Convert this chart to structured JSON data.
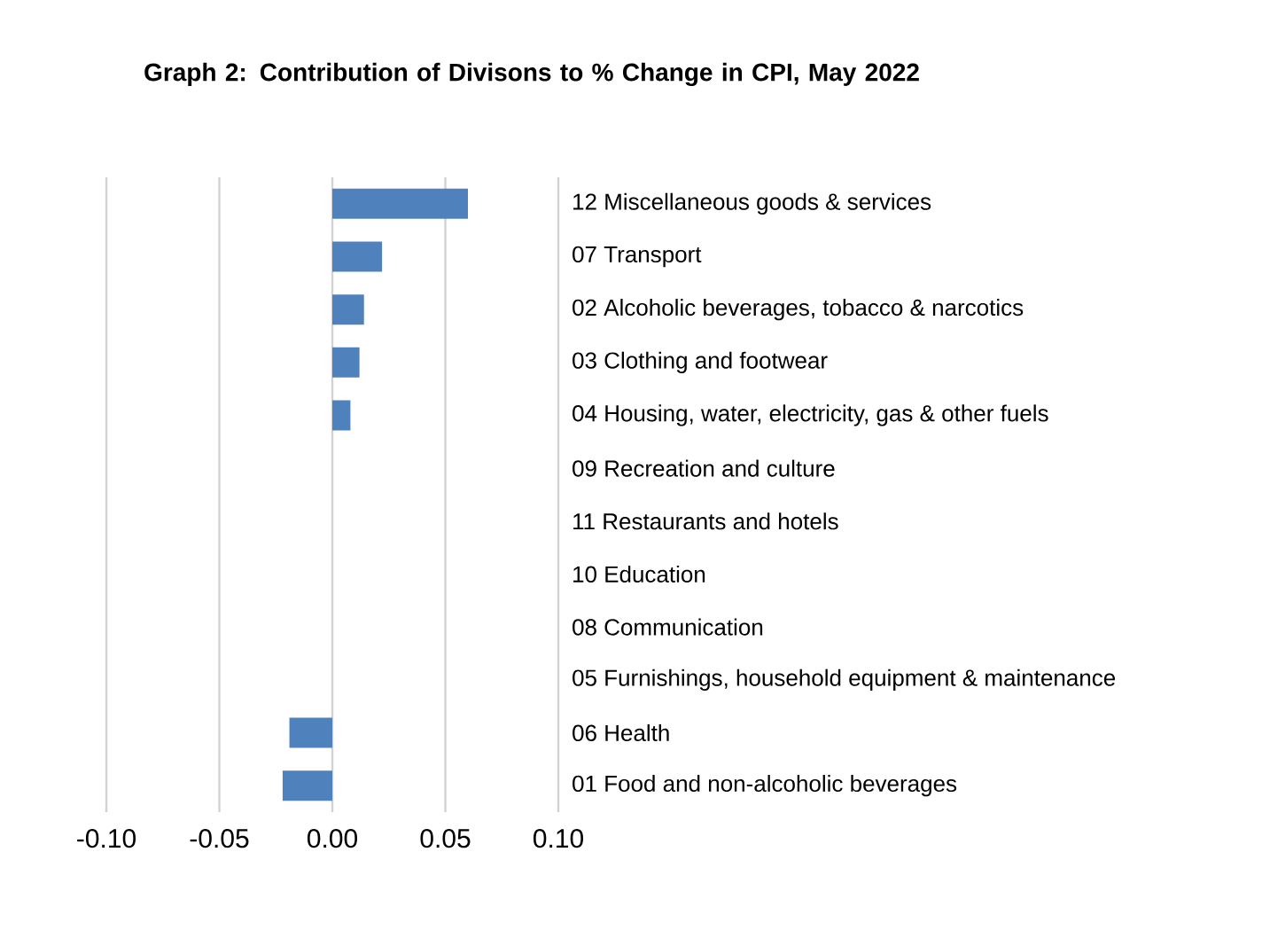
{
  "chart_data": {
    "type": "bar",
    "orientation": "horizontal",
    "title": "Graph 2: Contribution of Divisons to % Change in CPI, May 2022",
    "categories": [
      "12 Miscellaneous goods & services",
      "07 Transport",
      "02 Alcoholic beverages, tobacco & narcotics",
      "03 Clothing and footwear",
      "04 Housing, water, electricity, gas & other fuels",
      "09 Recreation and culture",
      "11 Restaurants and hotels",
      "10 Education",
      "08 Communication",
      "05 Furnishings, household equipment & maintenance",
      "06 Health",
      "01 Food and non-alcoholic beverages"
    ],
    "values": [
      0.06,
      0.022,
      0.014,
      0.012,
      0.008,
      0,
      0,
      0,
      0,
      0,
      -0.019,
      -0.022
    ],
    "color": "#4f81bd",
    "xlim": [
      -0.1,
      0.1
    ],
    "xticks": [
      {
        "value": -0.1,
        "label": "-0.10"
      },
      {
        "value": -0.05,
        "label": "-0.05"
      },
      {
        "value": 0,
        "label": "0.00"
      },
      {
        "value": 0.05,
        "label": "0.05"
      },
      {
        "value": 0.1,
        "label": "0.10"
      }
    ],
    "grid": "x"
  }
}
